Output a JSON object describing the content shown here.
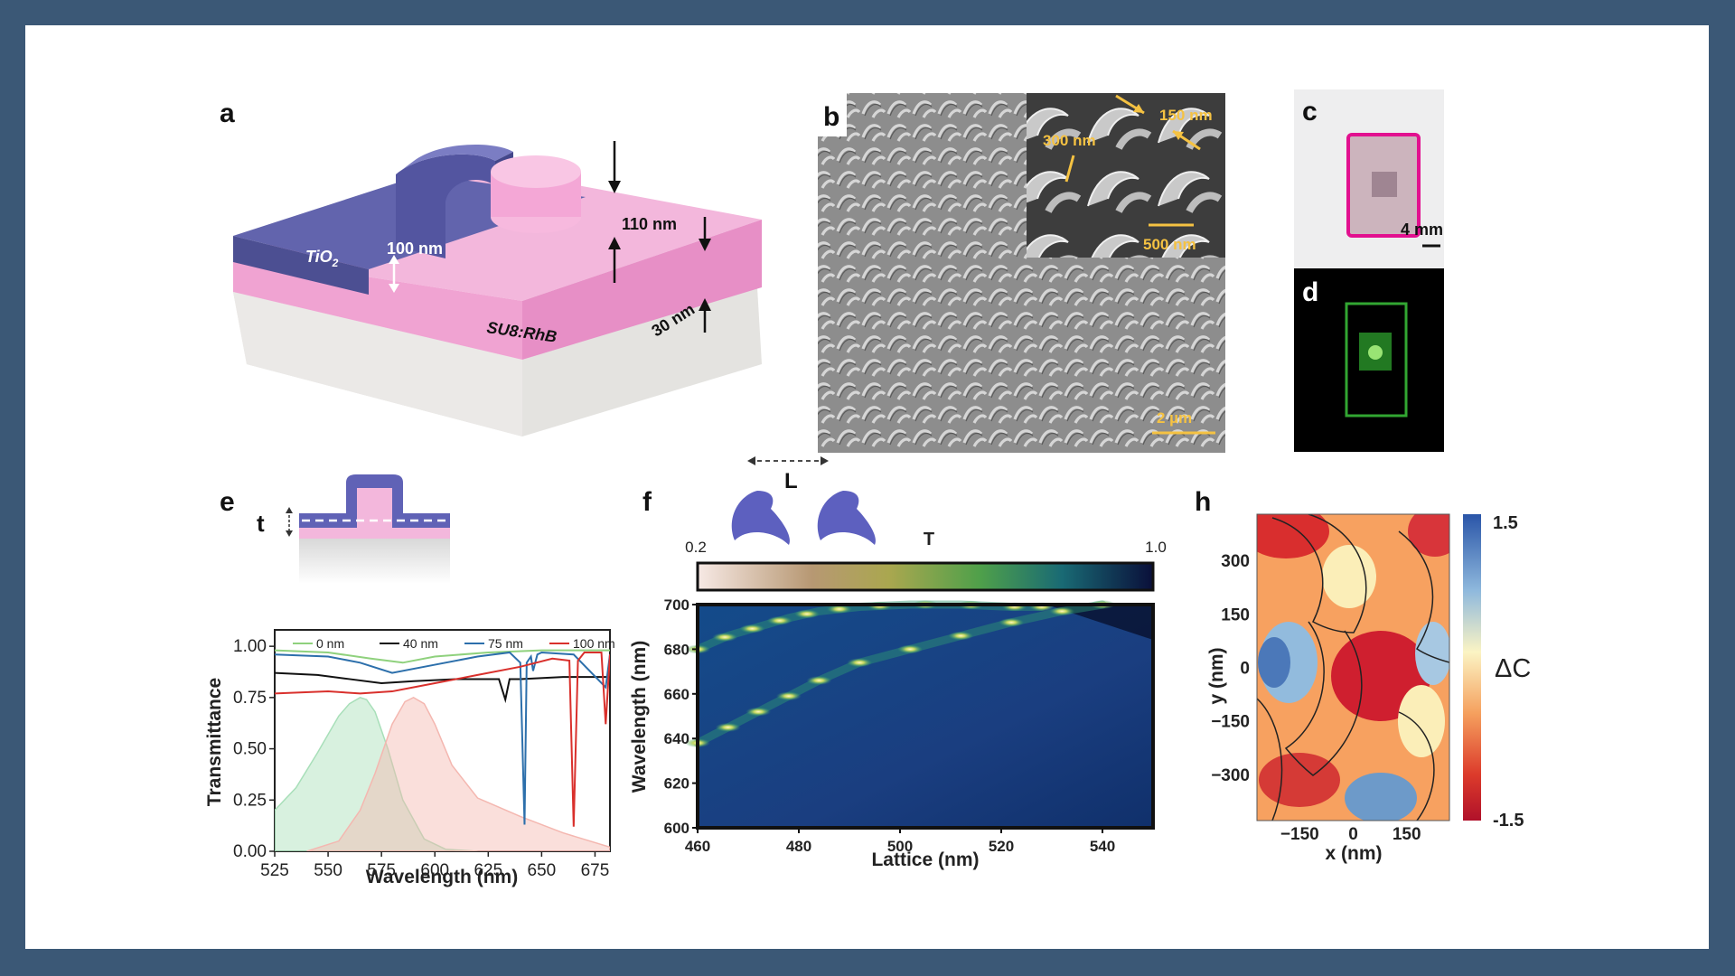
{
  "panels": {
    "a": {
      "label": "a",
      "layer_labels": {
        "tio2_main": "TiO",
        "tio2_sub": "2",
        "su8": "SU8:RhB"
      },
      "dimensions": {
        "film": "100 nm",
        "height": "110 nm",
        "su8_thickness": "30 nm"
      },
      "colors": {
        "tio2": "#5a5fa8",
        "su8": "#f2a9d7",
        "substrate": "#e7e6e4"
      }
    },
    "b": {
      "label": "b",
      "annotations": {
        "width": "150 nm",
        "gap": "300 nm",
        "inset_scale": "500 nm",
        "scale": "2 µm"
      },
      "annotation_color": "#f5c242"
    },
    "c": {
      "label": "c",
      "scale": "4 mm"
    },
    "d": {
      "label": "d"
    },
    "e": {
      "label": "e",
      "inset_label": "t",
      "chart_data": {
        "type": "line",
        "xlabel": "Wavelength (nm)",
        "ylabel": "Transmittance",
        "xlim": [
          525,
          682
        ],
        "ylim": [
          0,
          1.08
        ],
        "xticks": [
          525,
          550,
          575,
          600,
          625,
          650,
          675
        ],
        "yticks": [
          0.0,
          0.25,
          0.5,
          0.75,
          1.0
        ],
        "ytick_labels": [
          "0.00",
          "0.25",
          "0.50",
          "0.75",
          "1.00"
        ],
        "legend_position": "top",
        "series": [
          {
            "name": "0 nm",
            "color": "#8fd17d",
            "x": [
              525,
              550,
              570,
              585,
              600,
              625,
              650,
              675,
              682
            ],
            "y": [
              0.98,
              0.97,
              0.94,
              0.92,
              0.95,
              0.97,
              0.98,
              0.98,
              0.98
            ]
          },
          {
            "name": "40 nm",
            "color": "#111111",
            "x": [
              525,
              545,
              560,
              575,
              590,
              610,
              630,
              633,
              635,
              640,
              660,
              680,
              682
            ],
            "y": [
              0.87,
              0.86,
              0.84,
              0.82,
              0.83,
              0.84,
              0.84,
              0.74,
              0.84,
              0.84,
              0.85,
              0.85,
              0.85
            ]
          },
          {
            "name": "75 nm",
            "color": "#2c6fab",
            "x": [
              525,
              550,
              565,
              580,
              600,
              620,
              635,
              640,
              642,
              643,
              645,
              646,
              648,
              650,
              665,
              680,
              682
            ],
            "y": [
              0.96,
              0.95,
              0.92,
              0.87,
              0.91,
              0.95,
              0.97,
              0.92,
              0.13,
              0.92,
              0.95,
              0.88,
              0.96,
              0.97,
              0.96,
              0.8,
              0.96
            ]
          },
          {
            "name": "100 nm",
            "color": "#d9302c",
            "x": [
              525,
              550,
              565,
              580,
              600,
              620,
              640,
              655,
              663,
              665,
              667,
              670,
              678,
              680,
              682
            ],
            "y": [
              0.77,
              0.78,
              0.77,
              0.78,
              0.82,
              0.86,
              0.9,
              0.94,
              0.93,
              0.12,
              0.93,
              0.97,
              0.97,
              0.62,
              0.96
            ]
          }
        ],
        "filled_curves": [
          {
            "color": "#a8dfb9",
            "x": [
              525,
              535,
              545,
              555,
              560,
              565,
              568,
              572,
              578,
              585,
              595,
              605,
              620
            ],
            "y": [
              0.2,
              0.31,
              0.48,
              0.66,
              0.72,
              0.75,
              0.74,
              0.68,
              0.5,
              0.25,
              0.06,
              0.01,
              0.0
            ]
          },
          {
            "color": "#f4b7b0",
            "x": [
              540,
              555,
              565,
              572,
              580,
              586,
              590,
              595,
              600,
              608,
              620,
              640,
              660,
              682
            ],
            "y": [
              0.0,
              0.05,
              0.2,
              0.38,
              0.62,
              0.73,
              0.75,
              0.72,
              0.62,
              0.42,
              0.26,
              0.17,
              0.09,
              0.02
            ]
          }
        ]
      }
    },
    "f": {
      "label": "f",
      "lattice_symbol": "L",
      "colorbar": {
        "title": "T",
        "min": "0.2",
        "max": "1.0"
      },
      "chart_data": {
        "type": "heatmap",
        "xlabel": "Lattice (nm)",
        "ylabel": "Wavelength (nm)",
        "xlim": [
          460,
          550
        ],
        "ylim": [
          600,
          700
        ],
        "xticks": [
          460,
          480,
          500,
          520,
          540
        ],
        "yticks": [
          600,
          620,
          640,
          660,
          680,
          700
        ],
        "colorbar_range": [
          0.2,
          1.0
        ],
        "bands": [
          {
            "x": [
              460,
              466,
              472,
              478,
              484,
              492,
              502,
              512,
              522,
              532,
              540
            ],
            "y": [
              638,
              645,
              652,
              659,
              666,
              674,
              680,
              686,
              692,
              697,
              700
            ]
          },
          {
            "x": [
              460,
              466,
              472,
              478,
              484,
              492,
              502,
              512,
              522,
              528
            ],
            "y": [
              680,
              686,
              690,
              694,
              697,
              699,
              700,
              700,
              699,
              699
            ]
          }
        ]
      }
    },
    "h": {
      "label": "h",
      "colorbar": {
        "title": "ΔC",
        "max": "1.5",
        "min": "-1.5"
      },
      "chart_data": {
        "type": "heatmap",
        "xlabel": "x (nm)",
        "ylabel": "y (nm)",
        "xticks": [
          -150,
          0,
          150
        ],
        "xtick_labels": [
          "−150",
          "0",
          "150"
        ],
        "yticks": [
          300,
          150,
          0,
          -150,
          -300
        ],
        "ytick_labels": [
          "300",
          "150",
          "0",
          "−150",
          "−300"
        ],
        "colorbar_range": [
          -1.5,
          1.5
        ]
      }
    }
  }
}
